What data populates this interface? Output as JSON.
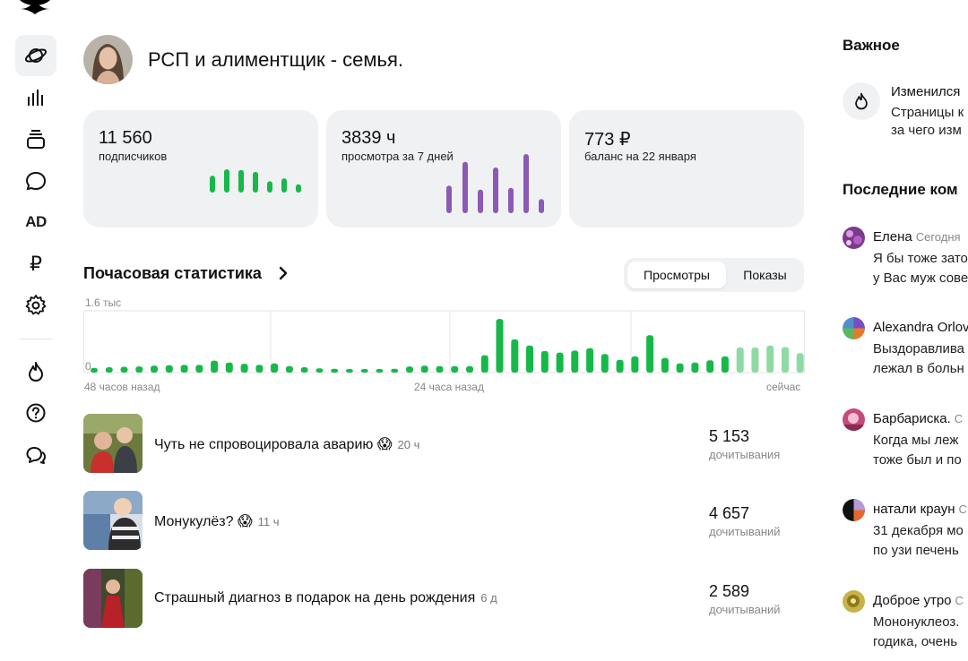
{
  "channel": {
    "title": "РСП и алиментщик - семья."
  },
  "stats": [
    {
      "value": "11 560",
      "label": "подписчиков"
    },
    {
      "value": "3839 ч",
      "label": "просмотра за 7 дней"
    },
    {
      "value": "773 ₽",
      "label": "баланс на 22 января"
    }
  ],
  "nav": {
    "items": [
      "planet-icon",
      "stats-icon",
      "layers-icon",
      "chat-icon",
      "ad-icon",
      "ruble-icon",
      "gear-icon",
      "fire-icon",
      "help-icon",
      "support-icon"
    ],
    "ad_label": "AD",
    "ruble_label": "₽"
  },
  "hourly": {
    "title": "Почасовая статистика",
    "tabs": [
      "Просмотры",
      "Показы"
    ],
    "selected_tab": 0
  },
  "chart_data": {
    "type": "bar",
    "y_tick_top": "1.6 тыс",
    "y_tick_zero": "0",
    "ylim": [
      0,
      1600
    ],
    "x_tick_labels": [
      "48 часов назад",
      "24 часа назад",
      "сейчас"
    ],
    "grid": true,
    "colors": {
      "actual": "#17b84a",
      "forecast": "#8fdaa4"
    },
    "values": [
      120,
      140,
      150,
      160,
      180,
      190,
      200,
      200,
      310,
      260,
      230,
      200,
      240,
      170,
      140,
      110,
      100,
      80,
      70,
      80,
      100,
      160,
      180,
      170,
      170,
      170,
      450,
      1390,
      860,
      700,
      560,
      520,
      570,
      630,
      480,
      330,
      420,
      970,
      380,
      240,
      260,
      320,
      420,
      650,
      650,
      700,
      660,
      500
    ],
    "forecast_from_index": 43
  },
  "subscribers_spark": {
    "values": [
      45,
      62,
      60,
      55,
      30,
      38,
      22
    ],
    "color": "#17b84a"
  },
  "views_spark": {
    "values": [
      35,
      65,
      30,
      58,
      32,
      75,
      18
    ],
    "color": "#8c5ab4"
  },
  "articles": [
    {
      "title": "Чуть не спровоцировала аварию 😱",
      "age": "20 ч",
      "count": "5 153",
      "count_label": "дочитывания"
    },
    {
      "title": "Монукулёз? 😱",
      "age": "11 ч",
      "count": "4 657",
      "count_label": "дочитываний"
    },
    {
      "title": "Страшный диагноз в подарок на день рождения",
      "age": "6 д",
      "count": "2 589",
      "count_label": "дочитываний"
    }
  ],
  "important": {
    "title": "Важное",
    "notice_head": "Изменился",
    "notice_lines": [
      "Страницы к",
      "за чего изм"
    ]
  },
  "comments": {
    "title": "Последние ком",
    "items": [
      {
        "name": "Елена",
        "date": "Сегодня",
        "lines": [
          "Я бы тоже зато",
          "у Вас муж сове"
        ]
      },
      {
        "name": "Alexandra Orlov",
        "date": "",
        "lines": [
          "Выздоравлива",
          "лежал в больн"
        ]
      },
      {
        "name": "Барбариска.",
        "date": "С",
        "lines": [
          "Когда мы леж",
          "тоже был и по"
        ]
      },
      {
        "name": "натали краун",
        "date": "С",
        "lines": [
          "31 декабря мо",
          "по узи печень"
        ]
      },
      {
        "name": "Доброе утро",
        "date": "С",
        "lines": [
          "Мононуклеоз.",
          "годика, очень"
        ]
      }
    ]
  }
}
